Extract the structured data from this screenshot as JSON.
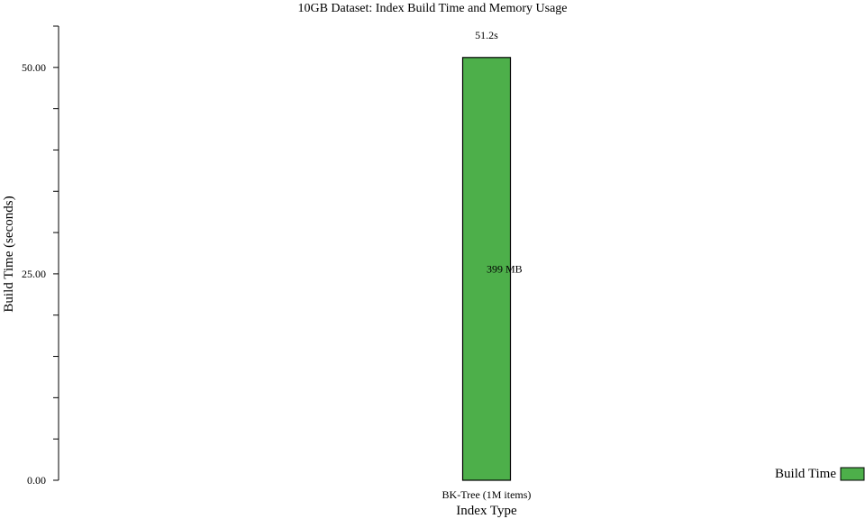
{
  "chart_data": {
    "type": "bar",
    "title": "10GB Dataset: Index Build Time and Memory Usage",
    "xlabel": "Index Type",
    "ylabel": "Build Time (seconds)",
    "ylim": [
      0,
      55
    ],
    "yticks": [
      0,
      25,
      50
    ],
    "ytick_labels": [
      "0.00",
      "25.00",
      "50.00"
    ],
    "minor_tick_step": 5,
    "categories": [
      "BK-Tree (1M items)"
    ],
    "series": [
      {
        "name": "Build Time",
        "values": [
          51.2
        ],
        "value_labels": [
          "51.2s"
        ],
        "inner_labels": [
          "399 MB"
        ],
        "color": "#4daf4a"
      }
    ],
    "legend": {
      "position": "bottom-right",
      "entries": [
        "Build Time"
      ]
    },
    "grid": false
  }
}
